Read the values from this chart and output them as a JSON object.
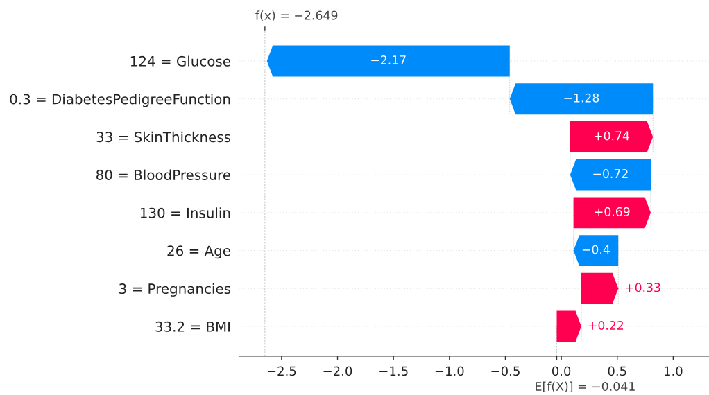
{
  "chart_data": {
    "type": "bar",
    "orientation": "horizontal",
    "categories": [
      "124 = Glucose",
      "0.3 = DiabetesPedigreeFunction",
      "33 = SkinThickness",
      "80 = BloodPressure",
      "130 = Insulin",
      "26 = Age",
      "3 = Pregnancies",
      "33.2 = BMI"
    ],
    "values": [
      -2.17,
      -1.28,
      0.74,
      -0.72,
      0.69,
      -0.4,
      0.33,
      0.22
    ],
    "base": [
      -0.461,
      0.819,
      0.079,
      0.799,
      0.109,
      0.509,
      0.179,
      -0.041
    ],
    "colors": [
      "#008bfb",
      "#008bfb",
      "#ff0051",
      "#008bfb",
      "#ff0051",
      "#008bfb",
      "#ff0051",
      "#ff0051"
    ],
    "value_labels": [
      "−2.17",
      "−1.28",
      "+0.74",
      "−0.72",
      "+0.69",
      "−0.4",
      "+0.33",
      "+0.22"
    ],
    "xlim": [
      -2.875,
      1.32
    ],
    "xticks": [
      {
        "value": -2.5,
        "label": "−2.5"
      },
      {
        "value": -2,
        "label": "−2.0"
      },
      {
        "value": -1.5,
        "label": "−1.5"
      },
      {
        "value": -1,
        "label": "−1.0"
      },
      {
        "value": -0.5,
        "label": "−0.5"
      },
      {
        "value": 0,
        "label": "0.0"
      },
      0.5,
      {
        "value": 1,
        "label": "1.0"
      }
    ],
    "ref_lines": [
      {
        "axis": "x",
        "value": -2.649,
        "label": "f(x) = −2.649",
        "color": "#bbbbbb",
        "line_style": "dashed"
      },
      {
        "axis": "x",
        "value": -0.041,
        "label": "E[f(X)] = −0.041",
        "color": "#bbbbbb",
        "line_style": "dashed"
      }
    ],
    "grid": "y"
  }
}
